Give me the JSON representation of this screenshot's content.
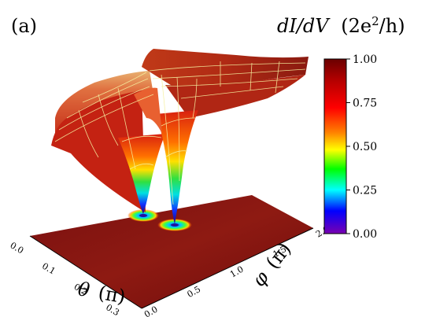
{
  "panel_label": "(a)",
  "chart_data": {
    "type": "surface3d",
    "title": "dI/dV (2e²/h)",
    "title_parts": {
      "quantity": "dI/dV",
      "unit_open": "(2e",
      "unit_sup": "2",
      "unit_close": "/h)"
    },
    "xlabel": "θ (π)",
    "xlabel_parts": {
      "symbol": "θ",
      "unit": "(π)"
    },
    "ylabel": "φ (π)",
    "ylabel_parts": {
      "symbol": "φ",
      "unit": "(π)"
    },
    "x_ticks": [
      "0.0",
      "0.1",
      "0.2",
      "0.3"
    ],
    "y_ticks": [
      "0.0",
      "0.5",
      "1.0",
      "1.5",
      "2.0"
    ],
    "xlim": [
      0,
      0.35
    ],
    "ylim": [
      0,
      2.0
    ],
    "zlim": [
      0,
      1.0
    ],
    "colorbar": {
      "ticks": [
        "1.00",
        "0.75",
        "0.50",
        "0.25",
        "0.00"
      ],
      "colors": [
        "#6a0000",
        "#b30000",
        "#ff0000",
        "#ff8000",
        "#ffff00",
        "#00ff00",
        "#00ffff",
        "#0000ff",
        "#7a00b0"
      ]
    },
    "surface": {
      "plateau_value": 0.97,
      "dips": [
        {
          "theta": 0.09,
          "phi": 1.45,
          "min_value": 0.0
        },
        {
          "theta": 0.16,
          "phi": 1.25,
          "min_value": 0.0
        }
      ]
    },
    "mesh_color": "#f5f0a0"
  }
}
